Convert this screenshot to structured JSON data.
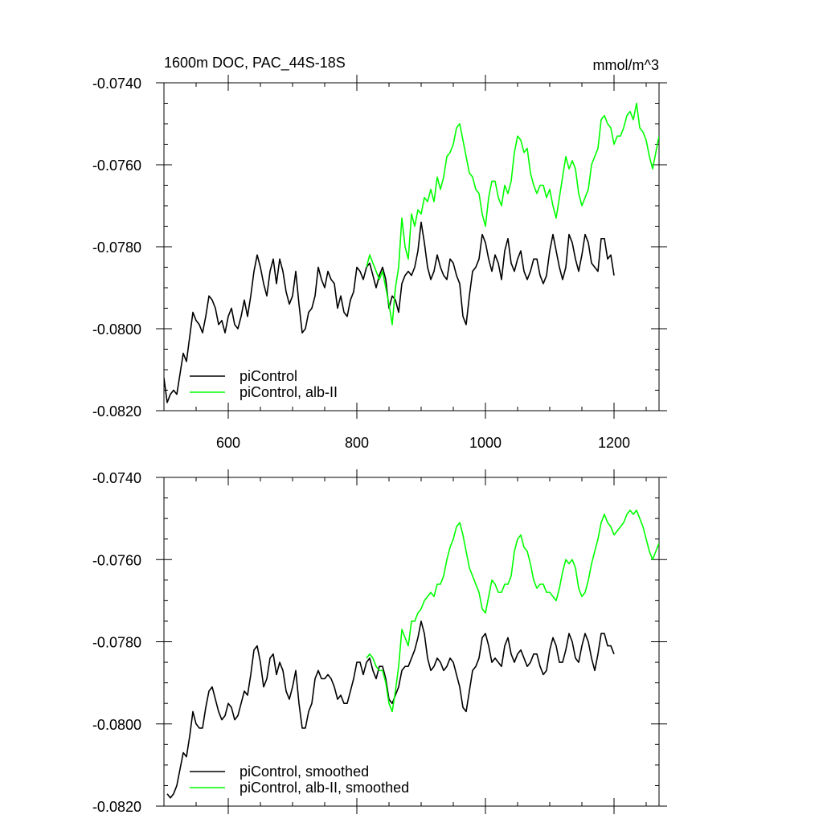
{
  "figure": {
    "title": "1600m DOC, PAC_44S-18S",
    "units": "mmol/m^3"
  },
  "chart_data": [
    {
      "type": "line",
      "title": "1600m DOC, PAC_44S-18S",
      "units_label": "mmol/m^3",
      "xlim": [
        500,
        1270
      ],
      "ylim": [
        -0.082,
        -0.074
      ],
      "x_ticks": [
        600,
        800,
        1000,
        1200
      ],
      "x_tick_labels": [
        "600",
        "800",
        "1000",
        "1200"
      ],
      "y_ticks": [
        -0.074,
        -0.076,
        -0.078,
        -0.08,
        -0.082
      ],
      "y_tick_labels": [
        "-0.0740",
        "-0.0760",
        "-0.0780",
        "-0.0800",
        "-0.0820"
      ],
      "grid": false,
      "legend": "bottom-left",
      "series": [
        {
          "name": "piControl",
          "color": "#000000",
          "x": [
            500,
            505,
            510,
            515,
            520,
            525,
            530,
            535,
            540,
            545,
            550,
            555,
            560,
            565,
            570,
            575,
            580,
            585,
            590,
            595,
            600,
            605,
            610,
            615,
            620,
            625,
            630,
            635,
            640,
            645,
            650,
            655,
            660,
            665,
            670,
            675,
            680,
            685,
            690,
            695,
            700,
            705,
            710,
            715,
            720,
            725,
            730,
            735,
            740,
            745,
            750,
            755,
            760,
            765,
            770,
            775,
            780,
            785,
            790,
            795,
            800,
            805,
            810,
            815,
            820,
            825,
            830,
            835,
            840,
            845,
            850,
            855,
            860,
            865,
            870,
            875,
            880,
            885,
            890,
            895,
            900,
            905,
            910,
            915,
            920,
            925,
            930,
            935,
            940,
            945,
            950,
            955,
            960,
            965,
            970,
            975,
            980,
            985,
            990,
            995,
            1000,
            1005,
            1010,
            1015,
            1020,
            1025,
            1030,
            1035,
            1040,
            1045,
            1050,
            1055,
            1060,
            1065,
            1070,
            1075,
            1080,
            1085,
            1090,
            1095,
            1100,
            1105,
            1110,
            1115,
            1120,
            1125,
            1130,
            1135,
            1140,
            1145,
            1150,
            1155,
            1160,
            1165,
            1170,
            1175,
            1180,
            1185,
            1190,
            1195,
            1200
          ],
          "y": [
            -0.0812,
            -0.0818,
            -0.0816,
            -0.0815,
            -0.0816,
            -0.0811,
            -0.0806,
            -0.0808,
            -0.0802,
            -0.0796,
            -0.0798,
            -0.0799,
            -0.0801,
            -0.0797,
            -0.0792,
            -0.0793,
            -0.0795,
            -0.0799,
            -0.0798,
            -0.0801,
            -0.0797,
            -0.0795,
            -0.0799,
            -0.08,
            -0.0797,
            -0.0793,
            -0.0797,
            -0.0792,
            -0.0786,
            -0.0782,
            -0.0785,
            -0.0789,
            -0.0792,
            -0.0786,
            -0.0783,
            -0.0789,
            -0.0783,
            -0.0786,
            -0.0791,
            -0.0794,
            -0.0792,
            -0.0786,
            -0.0794,
            -0.0801,
            -0.08,
            -0.0796,
            -0.0795,
            -0.0792,
            -0.0785,
            -0.0788,
            -0.079,
            -0.0786,
            -0.0788,
            -0.0789,
            -0.0795,
            -0.0792,
            -0.0796,
            -0.0797,
            -0.0793,
            -0.0791,
            -0.0785,
            -0.0786,
            -0.0788,
            -0.0785,
            -0.0784,
            -0.0787,
            -0.079,
            -0.0787,
            -0.0785,
            -0.0788,
            -0.0795,
            -0.0792,
            -0.0793,
            -0.0796,
            -0.0789,
            -0.0787,
            -0.0786,
            -0.0787,
            -0.0785,
            -0.0781,
            -0.0774,
            -0.0779,
            -0.0785,
            -0.0788,
            -0.0786,
            -0.0782,
            -0.0785,
            -0.0787,
            -0.0788,
            -0.0783,
            -0.0784,
            -0.0787,
            -0.0789,
            -0.0797,
            -0.0799,
            -0.0792,
            -0.0786,
            -0.0785,
            -0.0783,
            -0.0777,
            -0.0779,
            -0.0783,
            -0.0786,
            -0.0782,
            -0.0784,
            -0.0788,
            -0.0781,
            -0.0778,
            -0.0784,
            -0.0786,
            -0.0783,
            -0.0781,
            -0.0786,
            -0.0788,
            -0.0786,
            -0.0783,
            -0.0783,
            -0.0787,
            -0.0789,
            -0.0787,
            -0.0781,
            -0.0777,
            -0.0781,
            -0.0785,
            -0.0788,
            -0.0785,
            -0.0777,
            -0.0779,
            -0.0783,
            -0.0786,
            -0.0782,
            -0.0777,
            -0.0779,
            -0.0784,
            -0.0785,
            -0.0786,
            -0.0778,
            -0.0778,
            -0.0783,
            -0.0782,
            -0.0787
          ]
        },
        {
          "name": "piControl, alb-II",
          "color": "#00ff00",
          "x": [
            815,
            820,
            825,
            830,
            835,
            840,
            845,
            850,
            855,
            860,
            865,
            870,
            875,
            880,
            885,
            890,
            895,
            900,
            905,
            910,
            915,
            920,
            925,
            930,
            935,
            940,
            945,
            950,
            955,
            960,
            965,
            970,
            975,
            980,
            985,
            990,
            995,
            1000,
            1005,
            1010,
            1015,
            1020,
            1025,
            1030,
            1035,
            1040,
            1045,
            1050,
            1055,
            1060,
            1065,
            1070,
            1075,
            1080,
            1085,
            1090,
            1095,
            1100,
            1105,
            1110,
            1115,
            1120,
            1125,
            1130,
            1135,
            1140,
            1145,
            1150,
            1155,
            1160,
            1165,
            1170,
            1175,
            1180,
            1185,
            1190,
            1195,
            1200,
            1205,
            1210,
            1215,
            1220,
            1225,
            1230,
            1235,
            1240,
            1245,
            1250,
            1255,
            1260,
            1265,
            1270
          ],
          "y": [
            -0.0785,
            -0.0782,
            -0.0784,
            -0.0786,
            -0.0788,
            -0.0786,
            -0.079,
            -0.0794,
            -0.0799,
            -0.079,
            -0.0785,
            -0.0773,
            -0.078,
            -0.0783,
            -0.0772,
            -0.0775,
            -0.0771,
            -0.0772,
            -0.0768,
            -0.0769,
            -0.0766,
            -0.0769,
            -0.0763,
            -0.0766,
            -0.0763,
            -0.0758,
            -0.0757,
            -0.0755,
            -0.0751,
            -0.075,
            -0.0754,
            -0.0758,
            -0.0762,
            -0.0763,
            -0.0766,
            -0.0767,
            -0.0772,
            -0.0775,
            -0.0768,
            -0.0764,
            -0.0764,
            -0.0768,
            -0.077,
            -0.0765,
            -0.0767,
            -0.0764,
            -0.0757,
            -0.0753,
            -0.0754,
            -0.0757,
            -0.0756,
            -0.0762,
            -0.0765,
            -0.0767,
            -0.0765,
            -0.0765,
            -0.0768,
            -0.0766,
            -0.077,
            -0.0773,
            -0.0768,
            -0.0763,
            -0.0758,
            -0.0761,
            -0.0759,
            -0.0761,
            -0.0767,
            -0.077,
            -0.0768,
            -0.0766,
            -0.076,
            -0.0758,
            -0.0756,
            -0.0749,
            -0.0748,
            -0.075,
            -0.0751,
            -0.0755,
            -0.0753,
            -0.0753,
            -0.0751,
            -0.0748,
            -0.0747,
            -0.0749,
            -0.0745,
            -0.0751,
            -0.0752,
            -0.0754,
            -0.0758,
            -0.0761,
            -0.0757,
            -0.0753
          ]
        }
      ]
    },
    {
      "type": "line",
      "xlim": [
        500,
        1270
      ],
      "ylim": [
        -0.082,
        -0.074
      ],
      "x_ticks": [
        600,
        800,
        1000,
        1200
      ],
      "y_ticks": [
        -0.074,
        -0.076,
        -0.078,
        -0.08,
        -0.082
      ],
      "y_tick_labels": [
        "-0.0740",
        "-0.0760",
        "-0.0780",
        "-0.0800",
        "-0.0820"
      ],
      "grid": false,
      "legend": "bottom-left",
      "series": [
        {
          "name": "piControl, smoothed",
          "color": "#000000",
          "x": [
            505,
            510,
            515,
            520,
            525,
            530,
            535,
            540,
            545,
            550,
            555,
            560,
            565,
            570,
            575,
            580,
            585,
            590,
            595,
            600,
            605,
            610,
            615,
            620,
            625,
            630,
            635,
            640,
            645,
            650,
            655,
            660,
            665,
            670,
            675,
            680,
            685,
            690,
            695,
            700,
            705,
            710,
            715,
            720,
            725,
            730,
            735,
            740,
            745,
            750,
            755,
            760,
            765,
            770,
            775,
            780,
            785,
            790,
            795,
            800,
            805,
            810,
            815,
            820,
            825,
            830,
            835,
            840,
            845,
            850,
            855,
            860,
            865,
            870,
            875,
            880,
            885,
            890,
            895,
            900,
            905,
            910,
            915,
            920,
            925,
            930,
            935,
            940,
            945,
            950,
            955,
            960,
            965,
            970,
            975,
            980,
            985,
            990,
            995,
            1000,
            1005,
            1010,
            1015,
            1020,
            1025,
            1030,
            1035,
            1040,
            1045,
            1050,
            1055,
            1060,
            1065,
            1070,
            1075,
            1080,
            1085,
            1090,
            1095,
            1100,
            1105,
            1110,
            1115,
            1120,
            1125,
            1130,
            1135,
            1140,
            1145,
            1150,
            1155,
            1160,
            1165,
            1170,
            1175,
            1180,
            1185,
            1190,
            1195,
            1200
          ],
          "y": [
            -0.0817,
            -0.0818,
            -0.0817,
            -0.0815,
            -0.0811,
            -0.0807,
            -0.0808,
            -0.0803,
            -0.0797,
            -0.08,
            -0.0801,
            -0.0801,
            -0.0796,
            -0.0792,
            -0.0791,
            -0.0794,
            -0.0797,
            -0.0799,
            -0.0798,
            -0.0795,
            -0.0796,
            -0.0799,
            -0.0798,
            -0.0795,
            -0.0792,
            -0.0793,
            -0.0788,
            -0.0782,
            -0.0781,
            -0.0785,
            -0.0791,
            -0.0789,
            -0.0784,
            -0.0783,
            -0.0788,
            -0.0785,
            -0.0787,
            -0.0792,
            -0.0794,
            -0.0791,
            -0.0787,
            -0.0795,
            -0.0801,
            -0.0801,
            -0.0797,
            -0.0795,
            -0.0789,
            -0.0787,
            -0.0789,
            -0.0789,
            -0.0788,
            -0.0789,
            -0.0791,
            -0.0794,
            -0.0793,
            -0.0795,
            -0.0795,
            -0.0792,
            -0.0789,
            -0.0785,
            -0.0785,
            -0.0788,
            -0.0785,
            -0.0784,
            -0.0787,
            -0.0789,
            -0.0786,
            -0.0786,
            -0.0789,
            -0.0794,
            -0.0795,
            -0.0793,
            -0.0791,
            -0.0787,
            -0.0786,
            -0.0786,
            -0.0784,
            -0.0782,
            -0.0779,
            -0.0775,
            -0.0778,
            -0.0784,
            -0.0787,
            -0.0786,
            -0.0784,
            -0.0785,
            -0.0787,
            -0.0786,
            -0.0784,
            -0.0785,
            -0.0788,
            -0.0791,
            -0.0796,
            -0.0797,
            -0.0792,
            -0.0787,
            -0.0786,
            -0.0784,
            -0.0779,
            -0.0778,
            -0.0781,
            -0.0785,
            -0.0784,
            -0.0785,
            -0.0786,
            -0.0781,
            -0.0779,
            -0.0783,
            -0.0785,
            -0.0783,
            -0.0782,
            -0.0784,
            -0.0786,
            -0.0785,
            -0.0783,
            -0.0783,
            -0.0786,
            -0.0788,
            -0.0787,
            -0.0782,
            -0.0779,
            -0.0781,
            -0.0785,
            -0.0785,
            -0.0782,
            -0.0778,
            -0.078,
            -0.0784,
            -0.0785,
            -0.0781,
            -0.0778,
            -0.078,
            -0.0784,
            -0.0787,
            -0.0783,
            -0.0778,
            -0.0778,
            -0.0781,
            -0.0781,
            -0.0783
          ]
        },
        {
          "name": "piControl, alb-II, smoothed",
          "color": "#00ff00",
          "x": [
            815,
            820,
            825,
            830,
            835,
            840,
            845,
            850,
            855,
            860,
            865,
            870,
            875,
            880,
            885,
            890,
            895,
            900,
            905,
            910,
            915,
            920,
            925,
            930,
            935,
            940,
            945,
            950,
            955,
            960,
            965,
            970,
            975,
            980,
            985,
            990,
            995,
            1000,
            1005,
            1010,
            1015,
            1020,
            1025,
            1030,
            1035,
            1040,
            1045,
            1050,
            1055,
            1060,
            1065,
            1070,
            1075,
            1080,
            1085,
            1090,
            1095,
            1100,
            1105,
            1110,
            1115,
            1120,
            1125,
            1130,
            1135,
            1140,
            1145,
            1150,
            1155,
            1160,
            1165,
            1170,
            1175,
            1180,
            1185,
            1190,
            1195,
            1200,
            1205,
            1210,
            1215,
            1220,
            1225,
            1230,
            1235,
            1240,
            1245,
            1250,
            1255,
            1260,
            1265,
            1270
          ],
          "y": [
            -0.0784,
            -0.0783,
            -0.0784,
            -0.0786,
            -0.0787,
            -0.0787,
            -0.079,
            -0.0795,
            -0.0797,
            -0.0792,
            -0.0786,
            -0.0777,
            -0.0779,
            -0.0781,
            -0.0775,
            -0.0775,
            -0.0773,
            -0.0772,
            -0.077,
            -0.0769,
            -0.0768,
            -0.0769,
            -0.0766,
            -0.0766,
            -0.0764,
            -0.076,
            -0.0757,
            -0.0755,
            -0.0752,
            -0.0751,
            -0.0754,
            -0.0758,
            -0.0762,
            -0.0764,
            -0.0766,
            -0.0768,
            -0.0772,
            -0.0773,
            -0.0769,
            -0.0765,
            -0.0766,
            -0.0768,
            -0.0768,
            -0.0766,
            -0.0766,
            -0.0764,
            -0.0758,
            -0.0755,
            -0.0754,
            -0.0757,
            -0.0758,
            -0.0761,
            -0.0765,
            -0.0767,
            -0.0766,
            -0.0766,
            -0.0768,
            -0.0768,
            -0.0769,
            -0.077,
            -0.0767,
            -0.0763,
            -0.076,
            -0.0761,
            -0.076,
            -0.0762,
            -0.0767,
            -0.0769,
            -0.0768,
            -0.0765,
            -0.0761,
            -0.0758,
            -0.0755,
            -0.0751,
            -0.0749,
            -0.0751,
            -0.0752,
            -0.0754,
            -0.0753,
            -0.0752,
            -0.0751,
            -0.0749,
            -0.0748,
            -0.0749,
            -0.0748,
            -0.075,
            -0.0752,
            -0.0755,
            -0.0758,
            -0.076,
            -0.0758,
            -0.0756
          ]
        }
      ]
    }
  ]
}
